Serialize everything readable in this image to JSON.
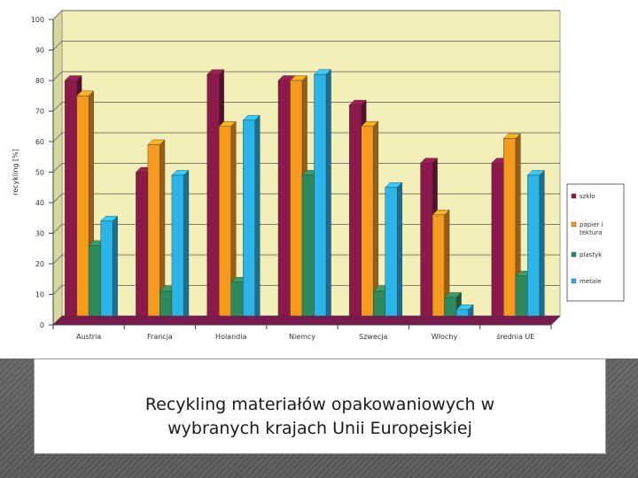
{
  "chart_data": {
    "type": "bar",
    "title": "",
    "ylabel": "recykling [%]",
    "xlabel": "",
    "ylim": [
      0,
      100
    ],
    "yticks": [
      0,
      10,
      20,
      30,
      40,
      50,
      60,
      70,
      80,
      90,
      100
    ],
    "grid": true,
    "legend_position": "right",
    "categories": [
      "Austria",
      "Francja",
      "Holandia",
      "Niemcy",
      "Szwecja",
      "Włochy",
      "średnia UE"
    ],
    "series": [
      {
        "name": "szkło",
        "color": "#8b1a4a",
        "values": [
          80,
          50,
          82,
          80,
          72,
          53,
          53
        ]
      },
      {
        "name": "papier i tektura",
        "color": "#f59a1c",
        "values": [
          75,
          59,
          65,
          80,
          65,
          36,
          61
        ]
      },
      {
        "name": "plastyk",
        "color": "#2e8a5a",
        "values": [
          26,
          11,
          14,
          49,
          11,
          9,
          16
        ]
      },
      {
        "name": "metale",
        "color": "#2ab4e8",
        "values": [
          34,
          49,
          67,
          82,
          45,
          5,
          49
        ]
      }
    ],
    "colors": {
      "plot_background": "#f2f0b8",
      "floor": "#7a1a50",
      "axis": "#555555"
    }
  },
  "caption": {
    "line1": "Recykling materiałów opakowaniowych w",
    "line2": "wybranych krajach Unii Europejskiej"
  }
}
